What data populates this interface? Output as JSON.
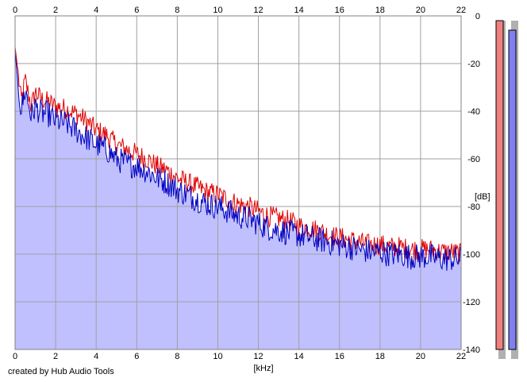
{
  "credit": "created by Hub Audio Tools",
  "chart_data": {
    "type": "area",
    "xlabel": "[kHz]",
    "ylabel": "[dB]",
    "xlim": [
      0,
      22
    ],
    "ylim": [
      -140,
      0
    ],
    "x_ticks": [
      0,
      2,
      4,
      6,
      8,
      10,
      12,
      14,
      16,
      18,
      20,
      22
    ],
    "y_ticks": [
      0,
      -20,
      -40,
      -60,
      -80,
      -100,
      -120,
      -140
    ],
    "grid": true,
    "colors": {
      "left_line": "#e00000",
      "right_line": "#0000c0",
      "fill": "#c0c0ff",
      "left_meter": "#f08080",
      "right_meter": "#8080f0",
      "grid": "#a0a0a0"
    },
    "series": [
      {
        "x": [
          0,
          0.1,
          0.3,
          0.5,
          0.8,
          1,
          1.3,
          1.6,
          2,
          2.5,
          3,
          3.5,
          4,
          4.5,
          5,
          5.5,
          6,
          6.5,
          7,
          7.5,
          8,
          8.5,
          9,
          9.5,
          10,
          10.5,
          11,
          11.5,
          12,
          12.5,
          13,
          13.5,
          14,
          14.5,
          15,
          15.5,
          16,
          16.5,
          17,
          17.5,
          18,
          18.5,
          19,
          19.5,
          20,
          20.5,
          21,
          21.5,
          22
        ],
        "values": [
          -13,
          -20,
          -36,
          -27,
          -38,
          -32,
          -35,
          -36,
          -38,
          -39,
          -41,
          -44,
          -48,
          -50,
          -54,
          -56,
          -58,
          -60,
          -63,
          -65,
          -68,
          -70,
          -72,
          -74,
          -75,
          -77,
          -79,
          -80,
          -82,
          -84,
          -85,
          -86,
          -88,
          -89,
          -90,
          -92,
          -93,
          -94,
          -95,
          -96,
          -96,
          -97,
          -97,
          -98,
          -98,
          -98,
          -99,
          -99,
          -100
        ]
      },
      {
        "x": [
          0,
          0.1,
          0.3,
          0.5,
          0.8,
          1,
          1.3,
          1.6,
          2,
          2.5,
          3,
          3.5,
          4,
          4.5,
          5,
          5.5,
          6,
          6.5,
          7,
          7.5,
          8,
          8.5,
          9,
          9.5,
          10,
          10.5,
          11,
          11.5,
          12,
          12.5,
          13,
          13.5,
          14,
          14.5,
          15,
          15.5,
          16,
          16.5,
          17,
          17.5,
          18,
          18.5,
          19,
          19.5,
          20,
          20.5,
          21,
          21.5,
          22
        ],
        "values": [
          -15,
          -24,
          -40,
          -31,
          -42,
          -38,
          -41,
          -41,
          -44,
          -45,
          -48,
          -51,
          -54,
          -56,
          -60,
          -62,
          -63,
          -65,
          -68,
          -70,
          -73,
          -75,
          -77,
          -79,
          -80,
          -82,
          -84,
          -85,
          -87,
          -89,
          -90,
          -91,
          -92,
          -93,
          -94,
          -95,
          -96,
          -97,
          -98,
          -99,
          -99,
          -100,
          -100,
          -101,
          -101,
          -101,
          -102,
          -102,
          -102
        ]
      }
    ],
    "meters": {
      "left_db": -140,
      "right_db": -140
    }
  }
}
